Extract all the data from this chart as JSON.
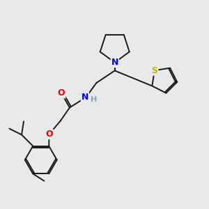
{
  "background_color": "#e8eaea",
  "bond_color": "#1a1a1a",
  "atom_colors": {
    "N": "#0000ee",
    "O": "#ee0000",
    "S": "#bbbb00",
    "H": "#88aaaa",
    "C": "#1a1a1a"
  },
  "figsize": [
    3.0,
    3.0
  ],
  "dpi": 100
}
